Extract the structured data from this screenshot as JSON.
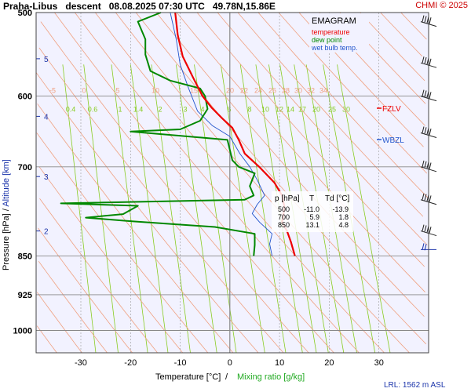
{
  "header": {
    "station": "Praha-Libus",
    "mode": "descent",
    "datetime": "08.08.2025 07:30 UTC",
    "coords": "49.78N,15.86E",
    "copyright": "CHMI © 2025"
  },
  "legend": {
    "title": "EMAGRAM",
    "temperature": "temperature",
    "dew_point": "dew point",
    "wet_bulb": "wet bulb temp."
  },
  "labels": {
    "fzlv": "FZLV",
    "wbzl": "WBZL",
    "lrl": "LRL: 1562 m ASL",
    "ylabel_pressure": "Pressure [hPa]",
    "ylabel_sep": "/",
    "ylabel_alt": "Altitude [km]",
    "xlabel_temp": "Temperature [°C]",
    "xlabel_sep": "/",
    "xlabel_mix": "Mixing ratio [g/kg]"
  },
  "colors": {
    "temperature": "#ee0000",
    "dew_point": "#008800",
    "wet_bulb": "#2255cc",
    "isotherm": "#000000",
    "dry_adiabat": "#f0a080",
    "mixing_ratio": "#88cc22",
    "grid": "#888888",
    "bg": "#f2f2ff",
    "altitude": "#1a33aa"
  },
  "table": {
    "headers": [
      "p [hPa]",
      "T",
      "Td [°C]"
    ],
    "rows": [
      [
        "500",
        "-11.0",
        "-13.9"
      ],
      [
        "700",
        "5.9",
        "1.8"
      ],
      [
        "850",
        "13.1",
        "4.8"
      ]
    ]
  },
  "chart_data": {
    "type": "line",
    "title": "",
    "xlabel": "Temperature [°C] / Mixing ratio [g/kg]",
    "ylabel": "Pressure [hPa] / Altitude [km]",
    "xlim": [
      -39,
      40
    ],
    "ylim": [
      500,
      1050
    ],
    "y_scale": "log",
    "grid": true,
    "x_ticks": [
      -30,
      -20,
      -10,
      0,
      10,
      20,
      30
    ],
    "y_ticks": [
      500,
      600,
      700,
      850,
      925,
      1000
    ],
    "altitude_ticks": [
      {
        "label": "2",
        "p": 805
      },
      {
        "label": "3",
        "p": 715
      },
      {
        "label": "4",
        "p": 627
      },
      {
        "label": "5",
        "p": 553
      }
    ],
    "dry_adiabat_labels": [
      "-5",
      "0",
      "5",
      "10",
      "15",
      "20",
      "22",
      "24",
      "26",
      "28",
      "30",
      "32",
      "34"
    ],
    "mixing_ratio_labels": [
      "0.4",
      "0.6",
      "1",
      "1.4",
      "2",
      "3",
      "4",
      "6",
      "8",
      "10",
      "12",
      "14",
      "17",
      "20",
      "25",
      "30"
    ],
    "series": [
      {
        "name": "temperature",
        "points": [
          [
            -11.0,
            500
          ],
          [
            -10.5,
            525
          ],
          [
            -9.5,
            550
          ],
          [
            -7.5,
            575
          ],
          [
            -5.5,
            600
          ],
          [
            -3.7,
            615
          ],
          [
            -1.5,
            630
          ],
          [
            0.5,
            643
          ],
          [
            1.8,
            660
          ],
          [
            3.0,
            680
          ],
          [
            5.9,
            700
          ],
          [
            9.0,
            725
          ],
          [
            10.5,
            745
          ],
          [
            11.0,
            765
          ],
          [
            10.5,
            790
          ],
          [
            11.5,
            805
          ],
          [
            12.3,
            825
          ],
          [
            13.1,
            850
          ]
        ]
      },
      {
        "name": "dew point",
        "points": [
          [
            -13.9,
            500
          ],
          [
            -18.5,
            510
          ],
          [
            -17.0,
            530
          ],
          [
            -17.0,
            548
          ],
          [
            -16.0,
            568
          ],
          [
            -12.0,
            580
          ],
          [
            -6.0,
            590
          ],
          [
            -5.0,
            600
          ],
          [
            -4.5,
            617
          ],
          [
            -6.0,
            633
          ],
          [
            -10.0,
            645
          ],
          [
            -20.0,
            648
          ],
          [
            -0.5,
            660
          ],
          [
            0.5,
            690
          ],
          [
            1.8,
            700
          ],
          [
            5.0,
            710
          ],
          [
            4.0,
            730
          ],
          [
            4.8,
            745
          ],
          [
            3.0,
            752
          ],
          [
            -34.0,
            758
          ],
          [
            -18.5,
            762
          ],
          [
            -21.5,
            776
          ],
          [
            -29.0,
            782
          ],
          [
            -20.0,
            788
          ],
          [
            -3.0,
            798
          ],
          [
            5.0,
            810
          ],
          [
            5.0,
            830
          ],
          [
            4.8,
            850
          ]
        ]
      },
      {
        "name": "wet bulb temp.",
        "points": [
          [
            -12.0,
            500
          ],
          [
            -10.8,
            530
          ],
          [
            -10.0,
            560
          ],
          [
            -8.3,
            590
          ],
          [
            -6.5,
            620
          ],
          [
            -3.5,
            640
          ],
          [
            0.0,
            655
          ],
          [
            2.0,
            680
          ],
          [
            4.0,
            700
          ],
          [
            5.5,
            720
          ],
          [
            7.0,
            745
          ],
          [
            5.5,
            760
          ],
          [
            4.5,
            775
          ],
          [
            6.0,
            790
          ],
          [
            8.5,
            810
          ],
          [
            8.0,
            828
          ],
          [
            8.5,
            850
          ]
        ]
      }
    ]
  }
}
